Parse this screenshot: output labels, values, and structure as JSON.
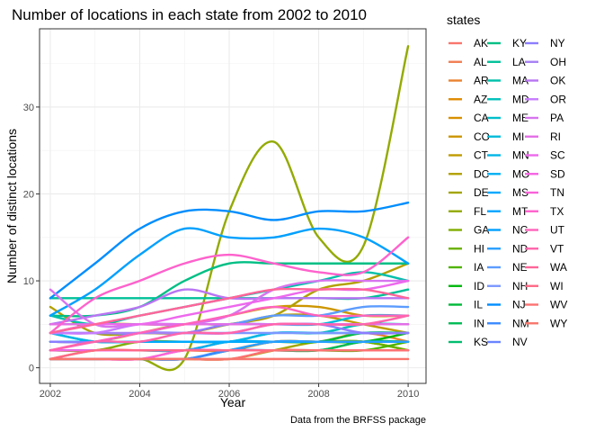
{
  "chart_data": {
    "type": "line",
    "title": "Number of locations in each state from 2002 to 2010",
    "xlabel": "Year",
    "ylabel": "Number of distinct locations",
    "caption": "Data from the BRFSS package",
    "xlim": [
      2001.76,
      2010.4
    ],
    "ylim": [
      -1.8,
      39.0
    ],
    "x_ticks": [
      2002,
      2004,
      2006,
      2008,
      2010
    ],
    "y_ticks": [
      0,
      10,
      20,
      30
    ],
    "grid": true,
    "legend_title": "states",
    "legend_position": "right",
    "x": [
      2002,
      2003,
      2004,
      2005,
      2006,
      2007,
      2008,
      2009,
      2010
    ],
    "series": [
      {
        "name": "AK",
        "color": "#F8766D",
        "values": [
          1,
          1,
          1,
          1,
          1,
          1,
          1,
          1,
          1
        ]
      },
      {
        "name": "AL",
        "color": "#F27D52",
        "values": [
          1,
          1,
          1,
          2,
          2,
          2,
          2,
          3,
          3
        ]
      },
      {
        "name": "AR",
        "color": "#EA8331",
        "values": [
          1,
          2,
          2,
          2,
          3,
          3,
          3,
          4,
          3
        ]
      },
      {
        "name": "AZ",
        "color": "#E18A00",
        "values": [
          2,
          2,
          2,
          2,
          2,
          3,
          3,
          3,
          2
        ]
      },
      {
        "name": "CA",
        "color": "#D89000",
        "values": [
          1,
          1,
          1,
          1,
          2,
          3,
          3,
          3,
          3
        ]
      },
      {
        "name": "CO",
        "color": "#CD9600",
        "values": [
          4,
          5,
          5,
          5,
          6,
          7,
          7,
          6,
          6
        ]
      },
      {
        "name": "CT",
        "color": "#C09B00",
        "values": [
          3,
          3,
          4,
          5,
          5,
          6,
          6,
          5,
          4
        ]
      },
      {
        "name": "DC",
        "color": "#B2A000",
        "values": [
          7,
          4,
          4,
          4,
          5,
          6,
          9,
          10,
          12
        ]
      },
      {
        "name": "DE",
        "color": "#A3A500",
        "values": [
          1,
          1,
          1,
          1,
          1,
          2,
          3,
          3,
          3
        ]
      },
      {
        "name": "FL",
        "color": "#93AA00",
        "values": [
          1,
          1,
          1,
          1,
          18,
          26,
          15,
          14,
          37
        ]
      },
      {
        "name": "GA",
        "color": "#81AD00",
        "values": [
          2,
          2,
          3,
          3,
          3,
          3,
          3,
          3,
          2
        ]
      },
      {
        "name": "HI",
        "color": "#6BB100",
        "values": [
          3,
          3,
          3,
          3,
          3,
          3,
          3,
          3,
          2
        ]
      },
      {
        "name": "IA",
        "color": "#4FB400",
        "values": [
          2,
          2,
          2,
          2,
          2,
          2,
          2,
          2,
          3
        ]
      },
      {
        "name": "ID",
        "color": "#00B70C",
        "values": [
          3,
          3,
          3,
          3,
          3,
          3,
          3,
          3,
          4
        ]
      },
      {
        "name": "IL",
        "color": "#00BA38",
        "values": [
          3,
          3,
          3,
          3,
          3,
          3,
          3,
          4,
          4
        ]
      },
      {
        "name": "IN",
        "color": "#00BC56",
        "values": [
          2,
          2,
          2,
          2,
          2,
          2,
          2,
          3,
          3
        ]
      },
      {
        "name": "KS",
        "color": "#00BD6F",
        "values": [
          3,
          3,
          3,
          3,
          3,
          3,
          3,
          3,
          3
        ]
      },
      {
        "name": "KY",
        "color": "#00BF84",
        "values": [
          6,
          6,
          7,
          10,
          12,
          12,
          12,
          12,
          12
        ]
      },
      {
        "name": "LA",
        "color": "#00C098",
        "values": [
          8,
          8,
          8,
          8,
          8,
          8,
          8,
          8,
          9
        ]
      },
      {
        "name": "MA",
        "color": "#00C0AA",
        "values": [
          6,
          5,
          6,
          7,
          8,
          9,
          10,
          11,
          10
        ]
      },
      {
        "name": "MD",
        "color": "#00C0BB",
        "values": [
          4,
          3,
          3,
          3,
          3,
          4,
          4,
          5,
          5
        ]
      },
      {
        "name": "ME",
        "color": "#00BECA",
        "values": [
          3,
          3,
          3,
          3,
          3,
          3,
          3,
          3,
          3
        ]
      },
      {
        "name": "MI",
        "color": "#00BBD9",
        "values": [
          5,
          5,
          5,
          5,
          5,
          5,
          5,
          6,
          6
        ]
      },
      {
        "name": "MN",
        "color": "#00B6E6",
        "values": [
          4,
          3,
          3,
          3,
          3,
          4,
          4,
          4,
          4
        ]
      },
      {
        "name": "MO",
        "color": "#00B0F3",
        "values": [
          2,
          2,
          2,
          2,
          3,
          3,
          3,
          3,
          3
        ]
      },
      {
        "name": "MS",
        "color": "#00A9FF",
        "values": [
          3,
          3,
          3,
          3,
          3,
          3,
          3,
          3,
          3
        ]
      },
      {
        "name": "MT",
        "color": "#00A5FF",
        "values": [
          2,
          2,
          2,
          2,
          2,
          2,
          2,
          2,
          2
        ]
      },
      {
        "name": "NC",
        "color": "#00A0FF",
        "values": [
          6,
          9,
          13,
          16,
          15,
          15,
          16,
          15,
          12
        ]
      },
      {
        "name": "ND",
        "color": "#2A9FFF",
        "values": [
          1,
          1,
          1,
          1,
          2,
          3,
          3,
          3,
          3
        ]
      },
      {
        "name": "NE",
        "color": "#5C9CFF",
        "values": [
          4,
          4,
          4,
          5,
          5,
          6,
          6,
          7,
          7
        ]
      },
      {
        "name": "NH",
        "color": "#7B97FF",
        "values": [
          3,
          3,
          4,
          4,
          4,
          4,
          4,
          4,
          4
        ]
      },
      {
        "name": "NJ",
        "color": "#008DFF",
        "values": [
          8,
          12,
          16,
          18,
          18,
          17,
          18,
          18,
          19
        ]
      },
      {
        "name": "NM",
        "color": "#3C8BFF",
        "values": [
          1,
          1,
          1,
          1,
          2,
          2,
          2,
          2,
          2
        ]
      },
      {
        "name": "NV",
        "color": "#6A84FF",
        "values": [
          2,
          2,
          2,
          2,
          2,
          2,
          2,
          2,
          2
        ]
      },
      {
        "name": "NY",
        "color": "#8C7DFF",
        "values": [
          3,
          3,
          4,
          4,
          5,
          5,
          5,
          4,
          4
        ]
      },
      {
        "name": "OH",
        "color": "#A67FF4",
        "values": [
          4,
          4,
          4,
          4,
          4,
          5,
          5,
          5,
          5
        ]
      },
      {
        "name": "OK",
        "color": "#B875F3",
        "values": [
          5,
          6,
          7,
          9,
          8,
          8,
          8,
          8,
          8
        ]
      },
      {
        "name": "OR",
        "color": "#C77CFF",
        "values": [
          4,
          4,
          5,
          5,
          5,
          5,
          5,
          5,
          5
        ]
      },
      {
        "name": "PA",
        "color": "#D774EF",
        "values": [
          9,
          5,
          5,
          5,
          6,
          9,
          10,
          10,
          10
        ]
      },
      {
        "name": "RI",
        "color": "#E36EE6",
        "values": [
          5,
          5,
          5,
          5,
          5,
          5,
          5,
          5,
          5
        ]
      },
      {
        "name": "SC",
        "color": "#ED68ED",
        "values": [
          4,
          5,
          5,
          6,
          7,
          8,
          9,
          9,
          10
        ]
      },
      {
        "name": "SD",
        "color": "#F564E3",
        "values": [
          2,
          2,
          2,
          2,
          2,
          2,
          2,
          2,
          2
        ]
      },
      {
        "name": "TN",
        "color": "#FA62DB",
        "values": [
          1,
          1,
          1,
          2,
          2,
          2,
          2,
          2,
          2
        ]
      },
      {
        "name": "TX",
        "color": "#FF61CC",
        "values": [
          4,
          8,
          10,
          12,
          13,
          12,
          11,
          11,
          15
        ]
      },
      {
        "name": "UT",
        "color": "#FF62BC",
        "values": [
          2,
          3,
          4,
          5,
          6,
          7,
          6,
          6,
          6
        ]
      },
      {
        "name": "VT",
        "color": "#FF64AB",
        "values": [
          2,
          3,
          3,
          4,
          4,
          5,
          5,
          5,
          6
        ]
      },
      {
        "name": "WA",
        "color": "#FF6599",
        "values": [
          4,
          5,
          6,
          7,
          8,
          9,
          9,
          9,
          8
        ]
      },
      {
        "name": "WI",
        "color": "#FF6886",
        "values": [
          1,
          2,
          2,
          2,
          2,
          2,
          2,
          2,
          2
        ]
      },
      {
        "name": "WV",
        "color": "#FC7171",
        "values": [
          1,
          1,
          1,
          1,
          1,
          2,
          2,
          2,
          2
        ]
      },
      {
        "name": "WY",
        "color": "#F8766D",
        "values": [
          1,
          1,
          1,
          1,
          1,
          1,
          1,
          1,
          null
        ]
      }
    ]
  }
}
